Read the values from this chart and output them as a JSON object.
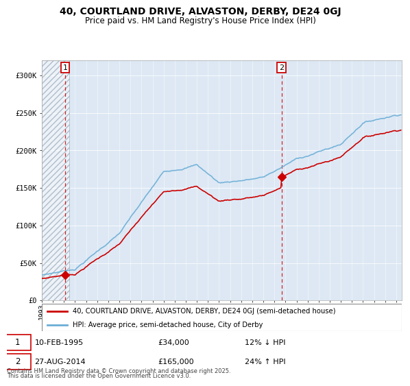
{
  "title": "40, COURTLAND DRIVE, ALVASTON, DERBY, DE24 0GJ",
  "subtitle": "Price paid vs. HM Land Registry's House Price Index (HPI)",
  "legend_line1": "40, COURTLAND DRIVE, ALVASTON, DERBY, DE24 0GJ (semi-detached house)",
  "legend_line2": "HPI: Average price, semi-detached house, City of Derby",
  "sale1_date": "10-FEB-1995",
  "sale1_price": 34000,
  "sale1_label": "1",
  "sale1_year": 1995.1,
  "sale2_date": "27-AUG-2014",
  "sale2_price": 165000,
  "sale2_label": "2",
  "sale2_year": 2014.65,
  "footer": "Contains HM Land Registry data © Crown copyright and database right 2025.\nThis data is licensed under the Open Government Licence v3.0.",
  "hpi_color": "#6baed6",
  "price_color": "#cc0000",
  "dashed_color": "#cc0000",
  "background_plot": "#dde8f4",
  "hatch_end": 1995.5,
  "ylim": [
    0,
    320000
  ],
  "xlim_start": 1993,
  "xlim_end": 2025.5
}
